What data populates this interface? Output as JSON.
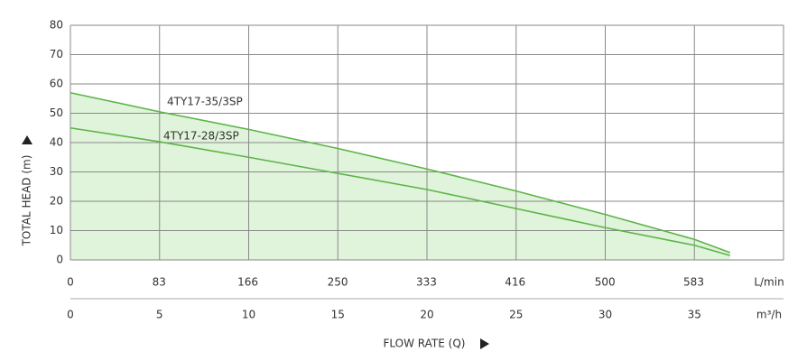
{
  "chart_data": {
    "type": "line",
    "ylabel": "TOTAL HEAD (m)",
    "xlabel": "FLOW RATE (Q)",
    "x_unit": "m³/h",
    "x2_unit": "L/min",
    "x": [
      0,
      5,
      10,
      15,
      20,
      25,
      30,
      35,
      37
    ],
    "xlim": [
      0,
      40
    ],
    "xticks": [
      0,
      5,
      10,
      15,
      20,
      25,
      30,
      35
    ],
    "x2lim": [
      0,
      667
    ],
    "x2ticks": [
      0,
      83,
      166,
      250,
      333,
      416,
      500,
      583
    ],
    "ylim": [
      0,
      80
    ],
    "yticks": [
      0,
      10,
      20,
      30,
      40,
      50,
      60,
      70,
      80
    ],
    "grid": true,
    "fill_color": "#e0f3db",
    "series": [
      {
        "name": "4TY17-35/3SP",
        "color": "#5cb548",
        "values": [
          57,
          50.5,
          44.5,
          38,
          31,
          23.5,
          15.5,
          7,
          2.5
        ]
      },
      {
        "name": "4TY17-28/3SP",
        "color": "#5cb548",
        "values": [
          45,
          40.3,
          35,
          29.5,
          24,
          17.5,
          11,
          5,
          1.5
        ]
      }
    ]
  }
}
